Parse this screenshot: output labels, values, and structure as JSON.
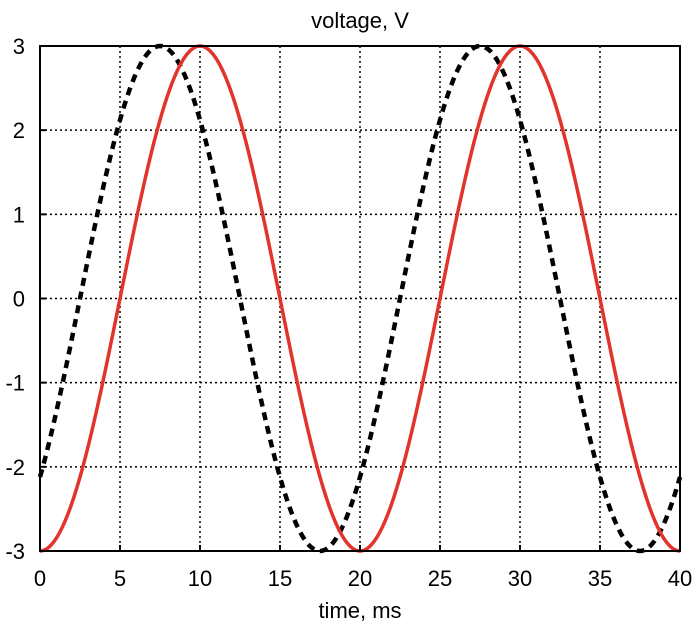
{
  "chart_data": {
    "type": "line",
    "title": "voltage, V",
    "xlabel": "time, ms",
    "ylabel": "",
    "xlim": [
      0,
      40
    ],
    "ylim": [
      -3,
      3
    ],
    "xticks": [
      "0",
      "5",
      "10",
      "15",
      "20",
      "25",
      "30",
      "35",
      "40"
    ],
    "yticks": [
      "3",
      "2",
      "1",
      "0",
      "-1",
      "-2",
      "-3"
    ],
    "grid": true,
    "grid_style": "dotted",
    "legend": "none",
    "series": [
      {
        "style": "dashed",
        "color": "#000000",
        "amplitude": 3,
        "period_ms": 20,
        "peak_times_ms": [
          7.5,
          27.5
        ],
        "trough_times_ms": [
          17.5,
          37.5
        ],
        "x": [
          0,
          2.5,
          5,
          7.5,
          10,
          12.5,
          15,
          17.5,
          20,
          22.5,
          25,
          27.5,
          30,
          32.5,
          35,
          37.5,
          40
        ],
        "values": [
          -2.12,
          0,
          2.12,
          3,
          2.12,
          0,
          -2.12,
          -3,
          -2.12,
          0,
          2.12,
          3,
          2.12,
          0,
          -2.12,
          -3,
          -2.12
        ]
      },
      {
        "style": "solid",
        "color": "#e0342c",
        "amplitude": 3,
        "period_ms": 20,
        "peak_times_ms": [
          10,
          30
        ],
        "trough_times_ms": [
          0,
          20,
          40
        ],
        "x": [
          0,
          2.5,
          5,
          7.5,
          10,
          12.5,
          15,
          17.5,
          20,
          22.5,
          25,
          27.5,
          30,
          32.5,
          35,
          37.5,
          40
        ],
        "values": [
          -3,
          -2.12,
          0,
          2.12,
          3,
          2.12,
          0,
          -2.12,
          -3,
          -2.12,
          0,
          2.12,
          3,
          2.12,
          0,
          -2.12,
          -3
        ]
      }
    ]
  }
}
